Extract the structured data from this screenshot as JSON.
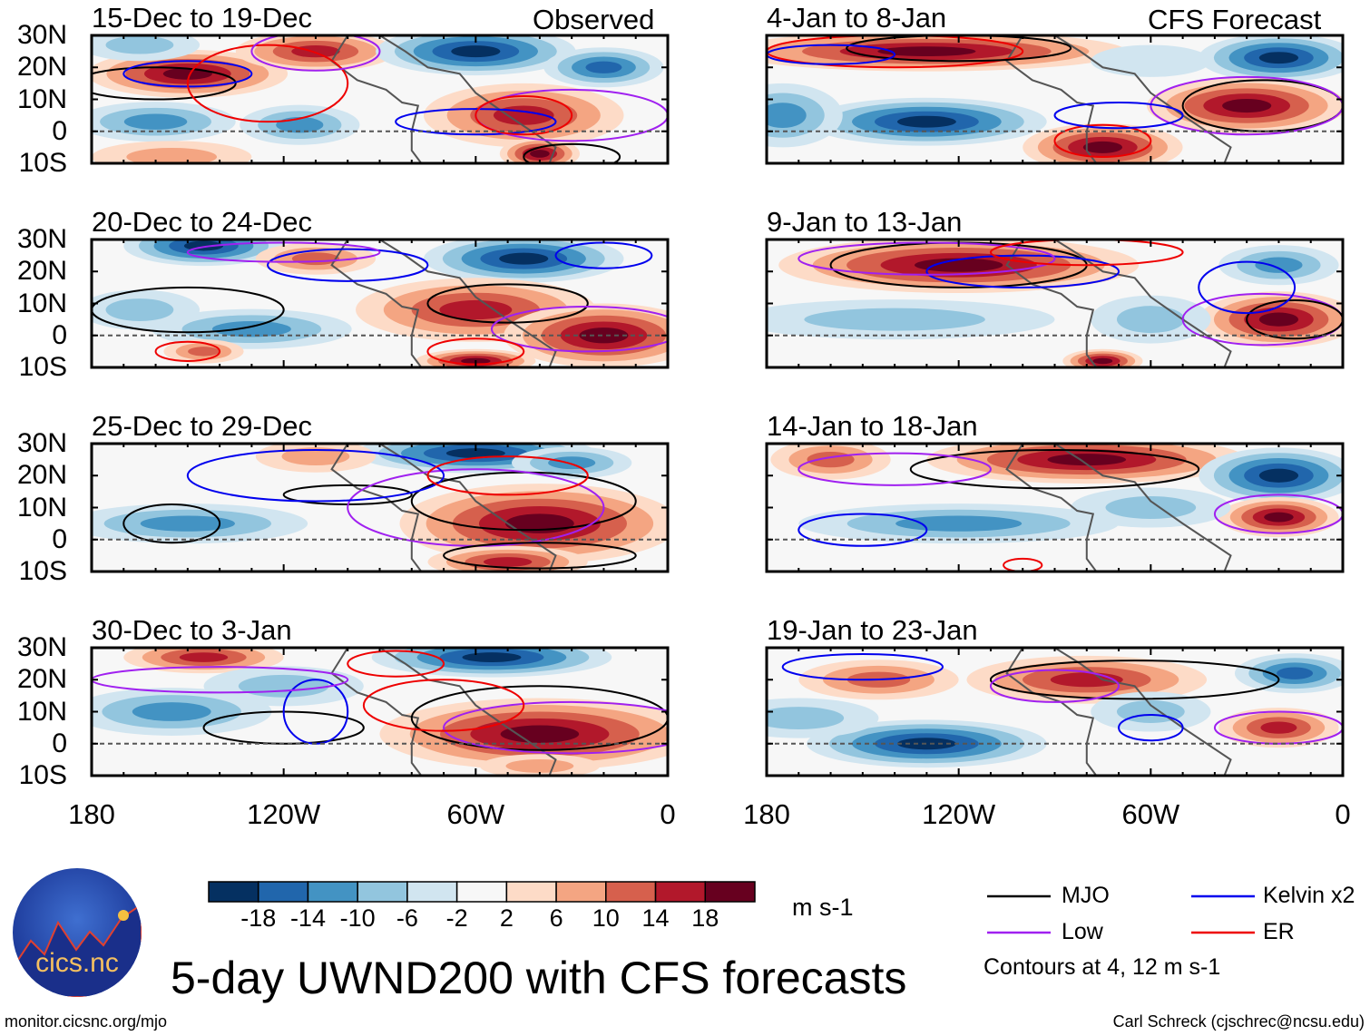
{
  "chart_data": {
    "type": "heatmap",
    "title": "5-day UWND200 with CFS forecasts",
    "units": "m s-1",
    "column_headers": {
      "left": "Observed",
      "right": "CFS Forecast"
    },
    "lat_ticks": [
      "30N",
      "20N",
      "10N",
      "0",
      "10S"
    ],
    "lon_ticks": [
      "180",
      "120W",
      "60W",
      "0"
    ],
    "lon_range": [
      -180,
      0
    ],
    "lat_range": [
      -10,
      30
    ],
    "colorbar": {
      "levels": [
        -18,
        -14,
        -10,
        -6,
        -2,
        2,
        6,
        10,
        14,
        18
      ],
      "labels": [
        "-18",
        "-14",
        "-10",
        "-6",
        "-2",
        "2",
        "6",
        "10",
        "14",
        "18"
      ],
      "colors": [
        "#053061",
        "#2166ac",
        "#4393c3",
        "#92c5de",
        "#d1e5f0",
        "#f7f7f7",
        "#fddbc7",
        "#f4a582",
        "#d6604d",
        "#b2182b",
        "#67001f"
      ]
    },
    "legend": [
      {
        "key": "mjo",
        "label": "MJO",
        "color": "#000000"
      },
      {
        "key": "kelvin",
        "label": "Kelvin x2",
        "color": "#0000ee"
      },
      {
        "key": "low",
        "label": "Low",
        "color": "#a020f0"
      },
      {
        "key": "er",
        "label": "ER",
        "color": "#ee0000"
      }
    ],
    "contour_note": "Contours at 4, 12 m s-1",
    "panels": [
      {
        "title": "15-Dec to 19-Dec",
        "column": "left",
        "row": 0,
        "anomalies": [
          [
            -150,
            18,
            25,
            6,
            19
          ],
          [
            -110,
            25,
            20,
            5,
            15
          ],
          [
            -60,
            25,
            25,
            6,
            -19
          ],
          [
            -20,
            20,
            15,
            5,
            -15
          ],
          [
            -160,
            3,
            20,
            5,
            -11
          ],
          [
            -115,
            2,
            15,
            5,
            -11
          ],
          [
            -45,
            5,
            25,
            8,
            15
          ],
          [
            -40,
            -7,
            10,
            4,
            19
          ],
          [
            -155,
            -8,
            20,
            4,
            7
          ],
          [
            -165,
            27,
            15,
            4,
            -8
          ]
        ],
        "contours": [
          [
            "mjo",
            -160,
            15,
            25,
            5
          ],
          [
            "kelvin",
            -150,
            18,
            20,
            4
          ],
          [
            "er",
            -125,
            15,
            25,
            12
          ],
          [
            "low",
            -110,
            25,
            20,
            6
          ],
          [
            "kelvin",
            -60,
            3,
            25,
            4
          ],
          [
            "low",
            -30,
            5,
            30,
            8
          ],
          [
            "mjo",
            -30,
            -8,
            15,
            4
          ],
          [
            "er",
            -45,
            5,
            15,
            6
          ]
        ]
      },
      {
        "title": "4-Jan to 8-Jan",
        "column": "right",
        "row": 0,
        "anomalies": [
          [
            -130,
            25,
            50,
            5,
            19
          ],
          [
            -20,
            23,
            20,
            6,
            -19
          ],
          [
            -130,
            3,
            30,
            6,
            -19
          ],
          [
            -75,
            -5,
            20,
            6,
            19
          ],
          [
            -30,
            8,
            25,
            7,
            19
          ],
          [
            -175,
            5,
            15,
            8,
            -11
          ],
          [
            -60,
            22,
            15,
            4,
            -6
          ]
        ],
        "contours": [
          [
            "er",
            -140,
            25,
            40,
            5
          ],
          [
            "mjo",
            -120,
            26,
            35,
            4
          ],
          [
            "kelvin",
            -160,
            24,
            20,
            3
          ],
          [
            "mjo",
            -25,
            8,
            25,
            8
          ],
          [
            "low",
            -30,
            8,
            30,
            9
          ],
          [
            "er",
            -75,
            -3,
            15,
            5
          ],
          [
            "kelvin",
            -70,
            5,
            20,
            4
          ]
        ]
      },
      {
        "title": "20-Dec to 24-Dec",
        "column": "left",
        "row": 1,
        "anomalies": [
          [
            -145,
            28,
            20,
            5,
            -19
          ],
          [
            -45,
            24,
            25,
            6,
            -19
          ],
          [
            -110,
            24,
            15,
            4,
            11
          ],
          [
            -60,
            8,
            30,
            8,
            15
          ],
          [
            -20,
            0,
            25,
            8,
            19
          ],
          [
            -130,
            2,
            25,
            5,
            -11
          ],
          [
            -60,
            -8,
            15,
            3,
            19
          ],
          [
            -165,
            8,
            15,
            5,
            -8
          ],
          [
            -145,
            -5,
            10,
            3,
            11
          ]
        ],
        "contours": [
          [
            "mjo",
            -150,
            8,
            30,
            7
          ],
          [
            "kelvin",
            -100,
            22,
            25,
            5
          ],
          [
            "low",
            -120,
            26,
            30,
            3
          ],
          [
            "mjo",
            -50,
            10,
            25,
            6
          ],
          [
            "low",
            -25,
            2,
            30,
            7
          ],
          [
            "er",
            -60,
            -5,
            15,
            4
          ],
          [
            "er",
            -150,
            -5,
            10,
            3
          ],
          [
            "kelvin",
            -20,
            25,
            15,
            4
          ]
        ]
      },
      {
        "title": "9-Jan to 13-Jan",
        "column": "right",
        "row": 1,
        "anomalies": [
          [
            -120,
            22,
            45,
            7,
            19
          ],
          [
            -140,
            5,
            40,
            5,
            -7
          ],
          [
            -20,
            22,
            15,
            5,
            -11
          ],
          [
            -20,
            5,
            20,
            7,
            19
          ],
          [
            -75,
            -8,
            10,
            3,
            19
          ],
          [
            -60,
            5,
            15,
            6,
            -7
          ]
        ],
        "contours": [
          [
            "mjo",
            -120,
            22,
            40,
            7
          ],
          [
            "kelvin",
            -100,
            20,
            30,
            5
          ],
          [
            "low",
            -130,
            24,
            40,
            5
          ],
          [
            "er",
            -80,
            26,
            30,
            4
          ],
          [
            "low",
            -25,
            5,
            25,
            8
          ],
          [
            "mjo",
            -15,
            5,
            15,
            6
          ],
          [
            "kelvin",
            -30,
            15,
            15,
            8
          ]
        ]
      },
      {
        "title": "25-Dec to 29-Dec",
        "column": "left",
        "row": 2,
        "anomalies": [
          [
            -60,
            27,
            30,
            5,
            -19
          ],
          [
            -150,
            5,
            30,
            5,
            -11
          ],
          [
            -40,
            5,
            35,
            10,
            19
          ],
          [
            -110,
            26,
            15,
            4,
            7
          ],
          [
            -50,
            -7,
            20,
            4,
            15
          ],
          [
            -30,
            24,
            15,
            4,
            -11
          ]
        ],
        "contours": [
          [
            "mjo",
            -155,
            5,
            15,
            6
          ],
          [
            "mjo",
            -100,
            14,
            20,
            3
          ],
          [
            "mjo",
            -45,
            12,
            35,
            9
          ],
          [
            "low",
            -60,
            10,
            40,
            12
          ],
          [
            "kelvin",
            -110,
            20,
            40,
            8
          ],
          [
            "er",
            -50,
            20,
            25,
            6
          ],
          [
            "mjo",
            -40,
            -5,
            30,
            4
          ]
        ]
      },
      {
        "title": "14-Jan to 18-Jan",
        "column": "right",
        "row": 2,
        "anomalies": [
          [
            -80,
            25,
            40,
            6,
            19
          ],
          [
            -160,
            25,
            15,
            5,
            11
          ],
          [
            -120,
            5,
            40,
            5,
            -11
          ],
          [
            -20,
            20,
            20,
            7,
            -19
          ],
          [
            -20,
            7,
            15,
            5,
            19
          ],
          [
            -60,
            10,
            20,
            5,
            -7
          ]
        ],
        "contours": [
          [
            "mjo",
            -90,
            22,
            45,
            6
          ],
          [
            "low",
            -140,
            22,
            30,
            5
          ],
          [
            "kelvin",
            -150,
            3,
            20,
            5
          ],
          [
            "low",
            -20,
            8,
            20,
            6
          ],
          [
            "er",
            -100,
            -8,
            6,
            2
          ]
        ]
      },
      {
        "title": "30-Dec to 3-Jan",
        "column": "left",
        "row": 3,
        "anomalies": [
          [
            -55,
            27,
            30,
            5,
            -19
          ],
          [
            -145,
            27,
            20,
            4,
            15
          ],
          [
            -155,
            10,
            25,
            6,
            -11
          ],
          [
            -40,
            3,
            40,
            9,
            19
          ],
          [
            -40,
            -7,
            15,
            3,
            7
          ],
          [
            -120,
            18,
            20,
            5,
            -7
          ]
        ],
        "contours": [
          [
            "mjo",
            -120,
            5,
            25,
            5
          ],
          [
            "mjo",
            -40,
            8,
            40,
            10
          ],
          [
            "low",
            -30,
            5,
            40,
            8
          ],
          [
            "er",
            -70,
            12,
            25,
            8
          ],
          [
            "kelvin",
            -110,
            10,
            10,
            10
          ],
          [
            "er",
            -85,
            25,
            15,
            4
          ],
          [
            "low",
            -140,
            20,
            40,
            4
          ]
        ]
      },
      {
        "title": "19-Jan to 23-Jan",
        "column": "right",
        "row": 3,
        "anomalies": [
          [
            -130,
            0,
            30,
            6,
            -19
          ],
          [
            -80,
            20,
            30,
            6,
            15
          ],
          [
            -15,
            22,
            15,
            5,
            -15
          ],
          [
            -20,
            5,
            15,
            5,
            15
          ],
          [
            -145,
            20,
            20,
            5,
            11
          ],
          [
            -170,
            8,
            20,
            5,
            -7
          ],
          [
            -60,
            10,
            15,
            5,
            -7
          ]
        ],
        "contours": [
          [
            "mjo",
            -65,
            20,
            45,
            6
          ],
          [
            "low",
            -20,
            5,
            20,
            5
          ],
          [
            "kelvin",
            -60,
            5,
            10,
            4
          ],
          [
            "low",
            -90,
            18,
            20,
            5
          ],
          [
            "kelvin",
            -150,
            24,
            25,
            4
          ]
        ]
      }
    ]
  },
  "footer": {
    "logo_text": "cics.nc",
    "logo_ring_text": "Cooperative Institute for Climate and Satellites",
    "url": "monitor.cicsnc.org/mjo",
    "credit": "Carl Schreck (cjschrec@ncsu.edu)"
  }
}
